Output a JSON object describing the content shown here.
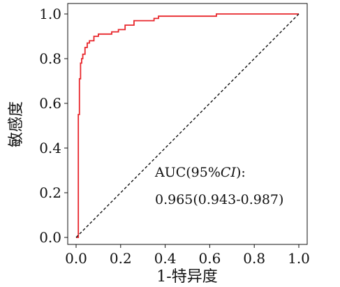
{
  "chart_data": {
    "type": "line",
    "title": "",
    "xlabel": "1-特异度",
    "ylabel": "敏感度",
    "xlim": [
      0,
      1
    ],
    "ylim": [
      0,
      1
    ],
    "x_ticks": [
      "0.0",
      "0.2",
      "0.4",
      "0.6",
      "0.8",
      "1.0"
    ],
    "y_ticks": [
      "0.0",
      "0.2",
      "0.4",
      "0.6",
      "0.8",
      "1.0"
    ],
    "grid": false,
    "legend": "none",
    "series": [
      {
        "color": "#e8262b",
        "style": "solid",
        "x": [
          0.0,
          0.01,
          0.01,
          0.015,
          0.015,
          0.02,
          0.02,
          0.025,
          0.025,
          0.03,
          0.03,
          0.04,
          0.04,
          0.05,
          0.05,
          0.06,
          0.06,
          0.08,
          0.08,
          0.1,
          0.1,
          0.16,
          0.16,
          0.19,
          0.19,
          0.22,
          0.22,
          0.26,
          0.26,
          0.35,
          0.35,
          0.37,
          0.37,
          0.63,
          0.63,
          1.0
        ],
        "y": [
          0.0,
          0.0,
          0.55,
          0.55,
          0.71,
          0.71,
          0.78,
          0.78,
          0.8,
          0.8,
          0.82,
          0.82,
          0.85,
          0.85,
          0.87,
          0.87,
          0.88,
          0.88,
          0.9,
          0.9,
          0.91,
          0.91,
          0.92,
          0.92,
          0.93,
          0.93,
          0.95,
          0.95,
          0.97,
          0.97,
          0.98,
          0.98,
          0.99,
          0.99,
          1.0,
          1.0
        ]
      },
      {
        "color": "#111111",
        "style": "dashed",
        "x": [
          0,
          1
        ],
        "y": [
          0,
          1
        ]
      }
    ],
    "annotations": {
      "line1_prefix": "AUC(95%",
      "line1_ci": "CI",
      "line1_suffix": "):",
      "line2": "0.965(0.943-0.987)"
    }
  }
}
